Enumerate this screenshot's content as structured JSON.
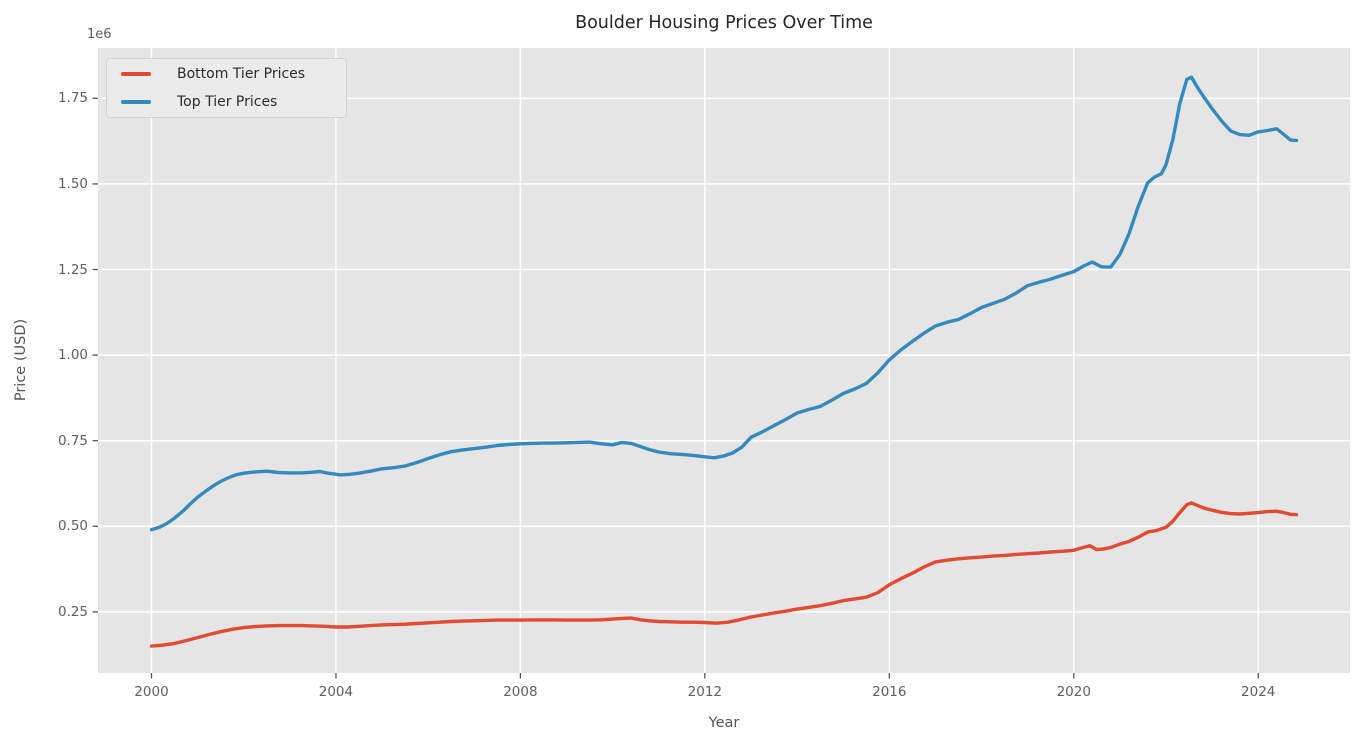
{
  "title": "Boulder Housing Prices Over Time",
  "axes": {
    "xlabel": "Year",
    "ylabel": "Price (USD)",
    "offset_label": "1e6",
    "x_ticks": [
      2000,
      2004,
      2008,
      2012,
      2016,
      2020,
      2024
    ],
    "y_tick_labels": [
      "0.25",
      "0.50",
      "0.75",
      "1.00",
      "1.25",
      "1.50",
      "1.75"
    ]
  },
  "legend": {
    "items": [
      {
        "label": "Bottom Tier Prices",
        "color": "#E24A33"
      },
      {
        "label": "Top Tier Prices",
        "color": "#348ABD"
      }
    ]
  },
  "colors": {
    "plot_background": "#E5E5E5",
    "grid": "#FFFFFF",
    "tick": "#555555",
    "bottom_tier": "#E24A33",
    "top_tier": "#348ABD"
  },
  "chart_data": {
    "type": "line",
    "title": "Boulder Housing Prices Over Time",
    "xlabel": "Year",
    "ylabel": "Price (USD)",
    "y_unit": "millions of USD (axis offset 1e6)",
    "xlim": [
      1998.84,
      2025.99
    ],
    "ylim": [
      0.0715,
      1.897
    ],
    "grid": true,
    "legend_position": "upper left",
    "series": [
      {
        "name": "Bottom Tier Prices",
        "color": "#E24A33",
        "points": [
          [
            2000.0,
            0.15
          ],
          [
            2000.25,
            0.153
          ],
          [
            2000.5,
            0.158
          ],
          [
            2000.75,
            0.166
          ],
          [
            2001.0,
            0.175
          ],
          [
            2001.25,
            0.184
          ],
          [
            2001.5,
            0.192
          ],
          [
            2001.75,
            0.199
          ],
          [
            2002.0,
            0.204
          ],
          [
            2002.25,
            0.207
          ],
          [
            2002.5,
            0.209
          ],
          [
            2002.75,
            0.21
          ],
          [
            2003.0,
            0.21
          ],
          [
            2003.25,
            0.21
          ],
          [
            2003.5,
            0.209
          ],
          [
            2003.75,
            0.208
          ],
          [
            2004.0,
            0.206
          ],
          [
            2004.25,
            0.206
          ],
          [
            2004.5,
            0.208
          ],
          [
            2004.75,
            0.21
          ],
          [
            2005.0,
            0.212
          ],
          [
            2005.25,
            0.213
          ],
          [
            2005.5,
            0.214
          ],
          [
            2005.75,
            0.216
          ],
          [
            2006.0,
            0.218
          ],
          [
            2006.25,
            0.22
          ],
          [
            2006.5,
            0.222
          ],
          [
            2006.75,
            0.223
          ],
          [
            2007.0,
            0.224
          ],
          [
            2007.25,
            0.225
          ],
          [
            2007.5,
            0.226
          ],
          [
            2008.0,
            0.226
          ],
          [
            2008.5,
            0.227
          ],
          [
            2009.0,
            0.226
          ],
          [
            2009.5,
            0.226
          ],
          [
            2009.75,
            0.227
          ],
          [
            2010.0,
            0.229
          ],
          [
            2010.2,
            0.231
          ],
          [
            2010.4,
            0.232
          ],
          [
            2010.6,
            0.227
          ],
          [
            2010.8,
            0.224
          ],
          [
            2011.0,
            0.222
          ],
          [
            2011.25,
            0.221
          ],
          [
            2011.5,
            0.22
          ],
          [
            2011.75,
            0.22
          ],
          [
            2012.0,
            0.219
          ],
          [
            2012.25,
            0.217
          ],
          [
            2012.5,
            0.22
          ],
          [
            2012.75,
            0.227
          ],
          [
            2013.0,
            0.235
          ],
          [
            2013.25,
            0.241
          ],
          [
            2013.5,
            0.247
          ],
          [
            2013.75,
            0.252
          ],
          [
            2014.0,
            0.258
          ],
          [
            2014.25,
            0.263
          ],
          [
            2014.5,
            0.268
          ],
          [
            2014.75,
            0.275
          ],
          [
            2015.0,
            0.283
          ],
          [
            2015.25,
            0.288
          ],
          [
            2015.5,
            0.293
          ],
          [
            2015.75,
            0.306
          ],
          [
            2016.0,
            0.329
          ],
          [
            2016.25,
            0.347
          ],
          [
            2016.5,
            0.363
          ],
          [
            2016.75,
            0.381
          ],
          [
            2017.0,
            0.396
          ],
          [
            2017.25,
            0.401
          ],
          [
            2017.5,
            0.405
          ],
          [
            2017.75,
            0.408
          ],
          [
            2018.0,
            0.41
          ],
          [
            2018.25,
            0.413
          ],
          [
            2018.5,
            0.415
          ],
          [
            2018.75,
            0.418
          ],
          [
            2019.0,
            0.42
          ],
          [
            2019.25,
            0.422
          ],
          [
            2019.5,
            0.425
          ],
          [
            2019.75,
            0.427
          ],
          [
            2020.0,
            0.43
          ],
          [
            2020.2,
            0.438
          ],
          [
            2020.35,
            0.443
          ],
          [
            2020.5,
            0.432
          ],
          [
            2020.65,
            0.434
          ],
          [
            2020.8,
            0.438
          ],
          [
            2021.0,
            0.448
          ],
          [
            2021.2,
            0.456
          ],
          [
            2021.4,
            0.468
          ],
          [
            2021.6,
            0.483
          ],
          [
            2021.8,
            0.488
          ],
          [
            2022.0,
            0.497
          ],
          [
            2022.15,
            0.515
          ],
          [
            2022.3,
            0.54
          ],
          [
            2022.45,
            0.563
          ],
          [
            2022.55,
            0.568
          ],
          [
            2022.7,
            0.56
          ],
          [
            2022.85,
            0.552
          ],
          [
            2023.0,
            0.547
          ],
          [
            2023.2,
            0.541
          ],
          [
            2023.4,
            0.537
          ],
          [
            2023.6,
            0.536
          ],
          [
            2023.8,
            0.538
          ],
          [
            2024.0,
            0.54
          ],
          [
            2024.2,
            0.543
          ],
          [
            2024.4,
            0.544
          ],
          [
            2024.55,
            0.54
          ],
          [
            2024.7,
            0.535
          ],
          [
            2024.83,
            0.534
          ]
        ]
      },
      {
        "name": "Top Tier Prices",
        "color": "#348ABD",
        "points": [
          [
            2000.0,
            0.49
          ],
          [
            2000.17,
            0.497
          ],
          [
            2000.33,
            0.508
          ],
          [
            2000.5,
            0.524
          ],
          [
            2000.67,
            0.543
          ],
          [
            2000.83,
            0.564
          ],
          [
            2001.0,
            0.585
          ],
          [
            2001.17,
            0.602
          ],
          [
            2001.33,
            0.617
          ],
          [
            2001.5,
            0.631
          ],
          [
            2001.67,
            0.642
          ],
          [
            2001.83,
            0.65
          ],
          [
            2002.0,
            0.655
          ],
          [
            2002.25,
            0.659
          ],
          [
            2002.5,
            0.661
          ],
          [
            2002.75,
            0.657
          ],
          [
            2003.0,
            0.656
          ],
          [
            2003.25,
            0.656
          ],
          [
            2003.5,
            0.658
          ],
          [
            2003.65,
            0.66
          ],
          [
            2003.8,
            0.656
          ],
          [
            2004.1,
            0.65
          ],
          [
            2004.3,
            0.652
          ],
          [
            2004.5,
            0.655
          ],
          [
            2004.75,
            0.661
          ],
          [
            2005.0,
            0.668
          ],
          [
            2005.25,
            0.671
          ],
          [
            2005.5,
            0.676
          ],
          [
            2005.75,
            0.686
          ],
          [
            2006.0,
            0.698
          ],
          [
            2006.25,
            0.709
          ],
          [
            2006.5,
            0.718
          ],
          [
            2006.75,
            0.723
          ],
          [
            2007.0,
            0.727
          ],
          [
            2007.25,
            0.731
          ],
          [
            2007.5,
            0.736
          ],
          [
            2007.75,
            0.739
          ],
          [
            2008.0,
            0.741
          ],
          [
            2008.25,
            0.742
          ],
          [
            2008.5,
            0.743
          ],
          [
            2008.75,
            0.743
          ],
          [
            2009.0,
            0.744
          ],
          [
            2009.25,
            0.745
          ],
          [
            2009.5,
            0.746
          ],
          [
            2009.75,
            0.741
          ],
          [
            2010.0,
            0.738
          ],
          [
            2010.2,
            0.745
          ],
          [
            2010.4,
            0.742
          ],
          [
            2010.6,
            0.733
          ],
          [
            2010.8,
            0.724
          ],
          [
            2011.0,
            0.717
          ],
          [
            2011.25,
            0.712
          ],
          [
            2011.5,
            0.71
          ],
          [
            2011.75,
            0.707
          ],
          [
            2012.0,
            0.703
          ],
          [
            2012.2,
            0.7
          ],
          [
            2012.4,
            0.705
          ],
          [
            2012.6,
            0.714
          ],
          [
            2012.8,
            0.731
          ],
          [
            2013.0,
            0.76
          ],
          [
            2013.25,
            0.776
          ],
          [
            2013.5,
            0.794
          ],
          [
            2013.75,
            0.812
          ],
          [
            2014.0,
            0.831
          ],
          [
            2014.25,
            0.841
          ],
          [
            2014.5,
            0.85
          ],
          [
            2014.75,
            0.868
          ],
          [
            2015.0,
            0.888
          ],
          [
            2015.25,
            0.901
          ],
          [
            2015.5,
            0.917
          ],
          [
            2015.75,
            0.948
          ],
          [
            2016.0,
            0.986
          ],
          [
            2016.25,
            1.015
          ],
          [
            2016.5,
            1.04
          ],
          [
            2016.75,
            1.064
          ],
          [
            2017.0,
            1.085
          ],
          [
            2017.25,
            1.096
          ],
          [
            2017.5,
            1.104
          ],
          [
            2017.75,
            1.121
          ],
          [
            2018.0,
            1.139
          ],
          [
            2018.25,
            1.151
          ],
          [
            2018.5,
            1.163
          ],
          [
            2018.75,
            1.181
          ],
          [
            2019.0,
            1.203
          ],
          [
            2019.25,
            1.213
          ],
          [
            2019.5,
            1.222
          ],
          [
            2019.75,
            1.233
          ],
          [
            2020.0,
            1.244
          ],
          [
            2020.2,
            1.259
          ],
          [
            2020.4,
            1.272
          ],
          [
            2020.6,
            1.258
          ],
          [
            2020.8,
            1.257
          ],
          [
            2021.0,
            1.294
          ],
          [
            2021.2,
            1.355
          ],
          [
            2021.4,
            1.435
          ],
          [
            2021.6,
            1.503
          ],
          [
            2021.75,
            1.52
          ],
          [
            2021.9,
            1.53
          ],
          [
            2022.0,
            1.556
          ],
          [
            2022.15,
            1.63
          ],
          [
            2022.3,
            1.735
          ],
          [
            2022.45,
            1.805
          ],
          [
            2022.55,
            1.812
          ],
          [
            2022.7,
            1.778
          ],
          [
            2022.85,
            1.748
          ],
          [
            2023.0,
            1.72
          ],
          [
            2023.2,
            1.685
          ],
          [
            2023.4,
            1.655
          ],
          [
            2023.6,
            1.644
          ],
          [
            2023.8,
            1.642
          ],
          [
            2024.0,
            1.652
          ],
          [
            2024.2,
            1.656
          ],
          [
            2024.4,
            1.661
          ],
          [
            2024.55,
            1.645
          ],
          [
            2024.7,
            1.628
          ],
          [
            2024.83,
            1.627
          ]
        ]
      }
    ]
  }
}
